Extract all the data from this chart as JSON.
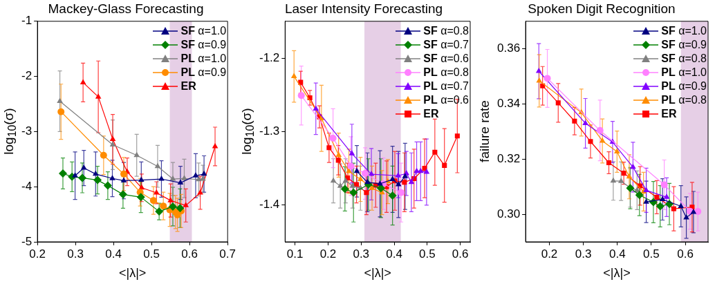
{
  "chart_data": [
    {
      "type": "line",
      "title": "Mackey-Glass Forecasting",
      "xlabel": "<|λ|>",
      "ylabel": "log$_{10}$(σ)",
      "xlim": [
        0.2,
        0.7
      ],
      "ylim": [
        -5,
        -1
      ],
      "xticks": [
        0.2,
        0.3,
        0.4,
        0.5,
        0.6,
        0.7
      ],
      "yticks": [
        -5,
        -4,
        -3,
        -2,
        -1
      ],
      "legend": "top right",
      "bands": [
        {
          "axis": "x",
          "from": 0.548,
          "to": 0.606,
          "color": "#e6cfe6"
        }
      ],
      "series": [
        {
          "name": "SF α=1.0",
          "color": "#000080",
          "marker": "triangle",
          "x": [
            0.299,
            0.322,
            0.353,
            0.397,
            0.427,
            0.473,
            0.526,
            0.576,
            0.616,
            0.638
          ],
          "values": [
            -3.8,
            -3.66,
            -3.77,
            -3.85,
            -3.89,
            -3.88,
            -3.86,
            -3.93,
            -3.8,
            -3.77
          ],
          "errors": [
            0.43,
            0.32,
            0.4,
            0.33,
            0.33,
            0.33,
            0.33,
            0.3,
            0.4,
            0.33
          ]
        },
        {
          "name": "SF α=0.9",
          "color": "#008000",
          "marker": "diamond",
          "x": [
            0.267,
            0.291,
            0.318,
            0.358,
            0.385,
            0.425,
            0.472,
            0.52,
            0.556,
            0.575
          ],
          "values": [
            -3.76,
            -3.82,
            -3.84,
            -3.88,
            -3.98,
            -4.14,
            -4.19,
            -4.45,
            -4.36,
            -4.39
          ],
          "errors": [
            0.28,
            0.27,
            0.27,
            0.25,
            0.25,
            0.25,
            0.28,
            0.15,
            0.35,
            0.35
          ]
        },
        {
          "name": "PL α=1.0",
          "color": "#808080",
          "marker": "triangle",
          "x": [
            0.259,
            0.398,
            0.461,
            0.516,
            0.556,
            0.586,
            0.624,
            0.635
          ],
          "values": [
            -2.45,
            -3.24,
            -3.43,
            -3.63,
            -3.86,
            -3.85,
            -3.87,
            -3.86
          ],
          "errors": [
            0.55,
            0.45,
            0.38,
            0.38,
            0.3,
            0.35,
            0.3,
            0.25
          ]
        },
        {
          "name": "PL α=0.9",
          "color": "#ff8c00",
          "marker": "circle",
          "x": [
            0.262,
            0.374,
            0.427,
            0.47,
            0.505,
            0.531,
            0.548,
            0.563,
            0.568,
            0.578
          ],
          "values": [
            -2.64,
            -3.43,
            -3.77,
            -4.1,
            -4.25,
            -4.35,
            -4.42,
            -4.46,
            -4.51,
            -4.44
          ],
          "errors": [
            0.5,
            0.35,
            0.3,
            0.25,
            0.25,
            0.25,
            0.3,
            0.3,
            0.3,
            0.3
          ]
        },
        {
          "name": "ER",
          "color": "#ff0000",
          "marker": "triangle",
          "x": [
            0.32,
            0.36,
            0.398,
            0.436,
            0.474,
            0.513,
            0.55,
            0.59,
            0.628,
            0.667
          ],
          "values": [
            -2.11,
            -2.37,
            -3.14,
            -3.73,
            -4.02,
            -4.11,
            -4.25,
            -4.34,
            -4.11,
            -3.27
          ],
          "errors": [
            0.35,
            0.65,
            0.45,
            0.25,
            0.25,
            0.2,
            0.3,
            0.3,
            0.3,
            0.35
          ]
        }
      ]
    },
    {
      "type": "line",
      "title": "Laser Intensity Forecasting",
      "xlabel": "<|λ|>",
      "ylabel": "log$_{10}$(σ)",
      "xlim": [
        0.07,
        0.63
      ],
      "ylim": [
        -1.45,
        -1.15
      ],
      "xticks": [
        0.1,
        0.2,
        0.3,
        0.4,
        0.5,
        0.6
      ],
      "yticks": [
        -1.4,
        -1.3,
        -1.2
      ],
      "legend": "top right",
      "bands": [
        {
          "axis": "x",
          "from": 0.31,
          "to": 0.42,
          "color": "#e6cfe6"
        }
      ],
      "series": [
        {
          "name": "SF α=0.8",
          "color": "#000080",
          "marker": "triangle",
          "x": [
            0.287,
            0.319,
            0.357,
            0.395,
            0.413,
            0.433
          ],
          "values": [
            -1.354,
            -1.369,
            -1.371,
            -1.365,
            -1.372,
            -1.361
          ],
          "errors": [
            0.035,
            0.04,
            0.045,
            0.045,
            0.045,
            0.045
          ]
        },
        {
          "name": "SF α=0.7",
          "color": "#008000",
          "marker": "diamond",
          "x": [
            0.251,
            0.277,
            0.322,
            0.36,
            0.395
          ],
          "values": [
            -1.378,
            -1.383,
            -1.372,
            -1.377,
            -1.387
          ],
          "errors": [
            0.03,
            0.04,
            0.035,
            0.04,
            0.04
          ]
        },
        {
          "name": "SF α=0.6",
          "color": "#808080",
          "marker": "triangle",
          "x": [
            0.216,
            0.237,
            0.253,
            0.274,
            0.298
          ],
          "values": [
            -1.367,
            -1.374,
            -1.367,
            -1.374,
            -1.377
          ],
          "errors": [
            0.03,
            0.03,
            0.03,
            0.03,
            0.03
          ]
        },
        {
          "name": "PL α=0.8",
          "color": "#ff80ff",
          "marker": "circle",
          "x": [
            0.119,
            0.215,
            0.269,
            0.312,
            0.367,
            0.421
          ],
          "values": [
            -1.251,
            -1.309,
            -1.347,
            -1.357,
            -1.371,
            -1.383
          ],
          "errors": [
            0.04,
            0.04,
            0.04,
            0.035,
            0.035,
            0.04
          ]
        },
        {
          "name": "PL α=0.7",
          "color": "#8000ff",
          "marker": "triangle",
          "x": [
            0.163,
            0.272,
            0.331,
            0.412,
            0.437,
            0.452,
            0.468,
            0.48,
            0.498
          ],
          "values": [
            -1.269,
            -1.33,
            -1.358,
            -1.36,
            -1.357,
            -1.369,
            -1.354,
            -1.354,
            -1.355
          ],
          "errors": [
            0.035,
            0.04,
            0.035,
            0.03,
            0.03,
            0.04,
            0.04,
            0.04,
            0.045
          ]
        },
        {
          "name": "PL α=0.6",
          "color": "#ff8c00",
          "marker": "triangle",
          "x": [
            0.097,
            0.18,
            0.232,
            0.263,
            0.298,
            0.333,
            0.363,
            0.381
          ],
          "values": [
            -1.225,
            -1.282,
            -1.332,
            -1.354,
            -1.365,
            -1.377,
            -1.383,
            -1.368
          ],
          "errors": [
            0.035,
            0.045,
            0.03,
            0.03,
            0.03,
            0.03,
            0.03,
            0.03
          ]
        },
        {
          "name": "ER",
          "color": "#ff0000",
          "marker": "square",
          "x": [
            0.117,
            0.145,
            0.174,
            0.203,
            0.231,
            0.259,
            0.286,
            0.316,
            0.344,
            0.377,
            0.402,
            0.431,
            0.46,
            0.492,
            0.523,
            0.552,
            0.591
          ],
          "values": [
            -1.233,
            -1.254,
            -1.28,
            -1.322,
            -1.339,
            -1.363,
            -1.372,
            -1.383,
            -1.373,
            -1.375,
            -1.367,
            -1.369,
            -1.364,
            -1.35,
            -1.328,
            -1.346,
            -1.306
          ],
          "errors": [
            0.015,
            0.01,
            0.015,
            0.02,
            0.02,
            0.02,
            0.025,
            0.03,
            0.03,
            0.035,
            0.04,
            0.04,
            0.04,
            0.04,
            0.045,
            0.05,
            0.05
          ]
        }
      ]
    },
    {
      "type": "line",
      "title": "Spoken Digit Recognition",
      "xlabel": "<|λ|>",
      "ylabel": "failure rate",
      "xlim": [
        0.13,
        0.667
      ],
      "ylim": [
        0.29,
        0.37
      ],
      "xticks": [
        0.2,
        0.3,
        0.4,
        0.5,
        0.6
      ],
      "yticks": [
        {
          "value": 0.3,
          "label": "0.30"
        },
        {
          "value": 0.32,
          "label": "0.32"
        },
        {
          "value": 0.34,
          "label": "0.34"
        },
        {
          "value": 0.36,
          "label": "0.36"
        }
      ],
      "legend": "top right",
      "bands": [
        {
          "axis": "x",
          "from": 0.587,
          "to": 0.667,
          "color": "#e6cfe6"
        }
      ],
      "series": [
        {
          "name": "SF α=1.0",
          "color": "#000080",
          "marker": "triangle",
          "x": [
            0.485,
            0.533,
            0.587,
            0.603,
            0.624
          ],
          "values": [
            0.3045,
            0.3054,
            0.3029,
            0.2988,
            0.3008
          ],
          "errors": [
            0.0075,
            0.0075,
            0.0075,
            0.0075,
            0.0075
          ]
        },
        {
          "name": "SF α=0.9",
          "color": "#008000",
          "marker": "diamond",
          "x": [
            0.438,
            0.465,
            0.506,
            0.526,
            0.553
          ],
          "values": [
            0.3095,
            0.307,
            0.3044,
            0.3029,
            0.3037
          ],
          "errors": [
            0.0075,
            0.0075,
            0.0075,
            0.0075,
            0.0075
          ]
        },
        {
          "name": "SF α=0.8",
          "color": "#808080",
          "marker": "triangle",
          "x": [
            0.388,
            0.411,
            0.438,
            0.458
          ],
          "values": [
            0.3121,
            0.312,
            0.3096,
            0.3087
          ],
          "errors": [
            0.007,
            0.007,
            0.007,
            0.007
          ]
        },
        {
          "name": "PL α=1.0",
          "color": "#ff80ff",
          "marker": "circle",
          "x": [
            0.194,
            0.349,
            0.538,
            0.614,
            0.637
          ],
          "values": [
            0.3493,
            0.3304,
            0.3107,
            0.3011,
            0.301
          ],
          "errors": [
            0.0105,
            0.011,
            0.009,
            0.0065,
            0.007
          ]
        },
        {
          "name": "PL α=0.9",
          "color": "#8000ff",
          "marker": "triangle",
          "x": [
            0.169,
            0.306,
            0.386,
            0.446,
            0.485,
            0.545
          ],
          "values": [
            0.3519,
            0.333,
            0.3262,
            0.3171,
            0.3087,
            0.3062
          ],
          "errors": [
            0.01,
            0.009,
            0.0075,
            0.009,
            0.008,
            0.007
          ]
        },
        {
          "name": "PL α=0.8",
          "color": "#ff8c00",
          "marker": "triangle",
          "x": [
            0.17,
            0.294,
            0.356,
            0.399,
            0.435,
            0.477
          ],
          "values": [
            0.3484,
            0.3369,
            0.3266,
            0.3227,
            0.3136,
            0.3082
          ],
          "errors": [
            0.0095,
            0.0085,
            0.008,
            0.0075,
            0.008,
            0.007
          ]
        },
        {
          "name": "ER",
          "color": "#ff0000",
          "marker": "square",
          "x": [
            0.18,
            0.226,
            0.274,
            0.321,
            0.375,
            0.419,
            0.467,
            0.516,
            0.566,
            0.62
          ],
          "values": [
            0.3466,
            0.3404,
            0.3338,
            0.3264,
            0.3187,
            0.3149,
            0.3103,
            0.3062,
            0.302,
            0.3026
          ],
          "errors": [
            0.007,
            0.007,
            0.005,
            0.006,
            0.004,
            0.004,
            0.007,
            0.006,
            0.008,
            0.009
          ]
        }
      ]
    }
  ]
}
